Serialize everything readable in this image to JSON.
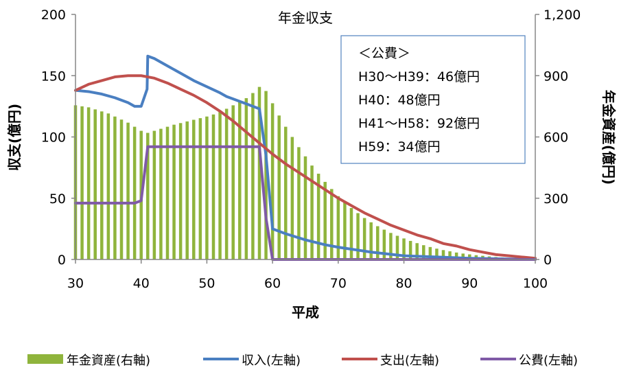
{
  "chart_data": {
    "type": "bar+line",
    "title": "年金収支",
    "xlabel": "平成",
    "ylabel_left": "収支(億円)",
    "ylabel_right": "年金資産(億円)",
    "x_range": [
      30,
      100
    ],
    "y_left_range": [
      0,
      200
    ],
    "y_right_range": [
      0,
      1200
    ],
    "x_ticks": [
      "30",
      "40",
      "50",
      "60",
      "70",
      "80",
      "90",
      "100"
    ],
    "y_left_ticks": [
      "0",
      "50",
      "100",
      "150",
      "200"
    ],
    "y_right_ticks": [
      "0",
      "300",
      "600",
      "900",
      "1,200"
    ],
    "gridlines": false,
    "legend_position": "bottom",
    "note_lines": [
      "＜公費＞",
      "H30～H39：46億円",
      "H40：48億円",
      "H41～H58：92億円",
      "H59：34億円"
    ],
    "series": [
      {
        "name": "年金資産(右軸)",
        "type": "bar",
        "axis": "right",
        "color": "#8fb43c",
        "x": [
          30,
          31,
          32,
          33,
          34,
          35,
          36,
          37,
          38,
          39,
          40,
          41,
          42,
          43,
          44,
          45,
          46,
          47,
          48,
          49,
          50,
          51,
          52,
          53,
          54,
          55,
          56,
          57,
          58,
          59,
          60,
          61,
          62,
          63,
          64,
          65,
          66,
          67,
          68,
          69,
          70,
          71,
          72,
          73,
          74,
          75,
          76,
          77,
          78,
          79,
          80,
          81,
          82,
          83,
          84,
          85,
          86,
          87,
          88,
          89,
          90,
          91,
          92,
          93,
          94,
          95,
          96,
          97,
          98,
          99,
          100
        ],
        "values": [
          755,
          750,
          745,
          735,
          725,
          715,
          700,
          685,
          670,
          650,
          630,
          620,
          630,
          640,
          650,
          660,
          668,
          676,
          684,
          692,
          700,
          710,
          722,
          738,
          755,
          770,
          790,
          815,
          845,
          825,
          765,
          705,
          650,
          600,
          550,
          505,
          460,
          420,
          380,
          345,
          310,
          280,
          252,
          227,
          203,
          182,
          163,
          146,
          130,
          116,
          103,
          91,
          80,
          70,
          61,
          53,
          46,
          40,
          34,
          29,
          25,
          21,
          18,
          15,
          12,
          10,
          8,
          6,
          5,
          3,
          2
        ]
      },
      {
        "name": "収入(左軸)",
        "type": "line",
        "axis": "left",
        "color": "#4a7fc1",
        "x": [
          30,
          32,
          34,
          36,
          38,
          39,
          40,
          40.9,
          41,
          42,
          44,
          46,
          48,
          50,
          52,
          53,
          54,
          56,
          58,
          59,
          60,
          62,
          65,
          68,
          70,
          75,
          80,
          85,
          90,
          95,
          100
        ],
        "values": [
          138,
          137,
          135,
          132,
          128,
          125,
          125,
          139,
          166,
          164,
          158,
          152,
          146,
          141,
          136,
          133,
          131,
          127,
          123,
          85,
          25,
          21,
          16,
          12,
          10,
          6,
          3,
          2,
          1,
          0.5,
          0
        ]
      },
      {
        "name": "支出(左軸)",
        "type": "line",
        "axis": "left",
        "color": "#c0504d",
        "x": [
          30,
          32,
          34,
          36,
          38,
          40,
          42,
          44,
          46,
          48,
          50,
          52,
          54,
          56,
          58,
          60,
          62,
          64,
          66,
          68,
          70,
          72,
          74,
          76,
          78,
          80,
          82,
          84,
          86,
          88,
          90,
          92,
          94,
          96,
          98,
          100
        ],
        "values": [
          138,
          143,
          146,
          149,
          150,
          150,
          148,
          144,
          139,
          134,
          128,
          121,
          113,
          104,
          95,
          86,
          78,
          71,
          64,
          57,
          50,
          44,
          38,
          33,
          28,
          24,
          20,
          17,
          13,
          11,
          8,
          6,
          4,
          3,
          2,
          1
        ]
      },
      {
        "name": "公費(左軸)",
        "type": "line",
        "axis": "left",
        "color": "#7f5aa6",
        "x": [
          30,
          39,
          40,
          41,
          58,
          59,
          60,
          100
        ],
        "values": [
          46,
          46,
          48,
          92,
          92,
          34,
          0,
          0
        ]
      }
    ]
  }
}
